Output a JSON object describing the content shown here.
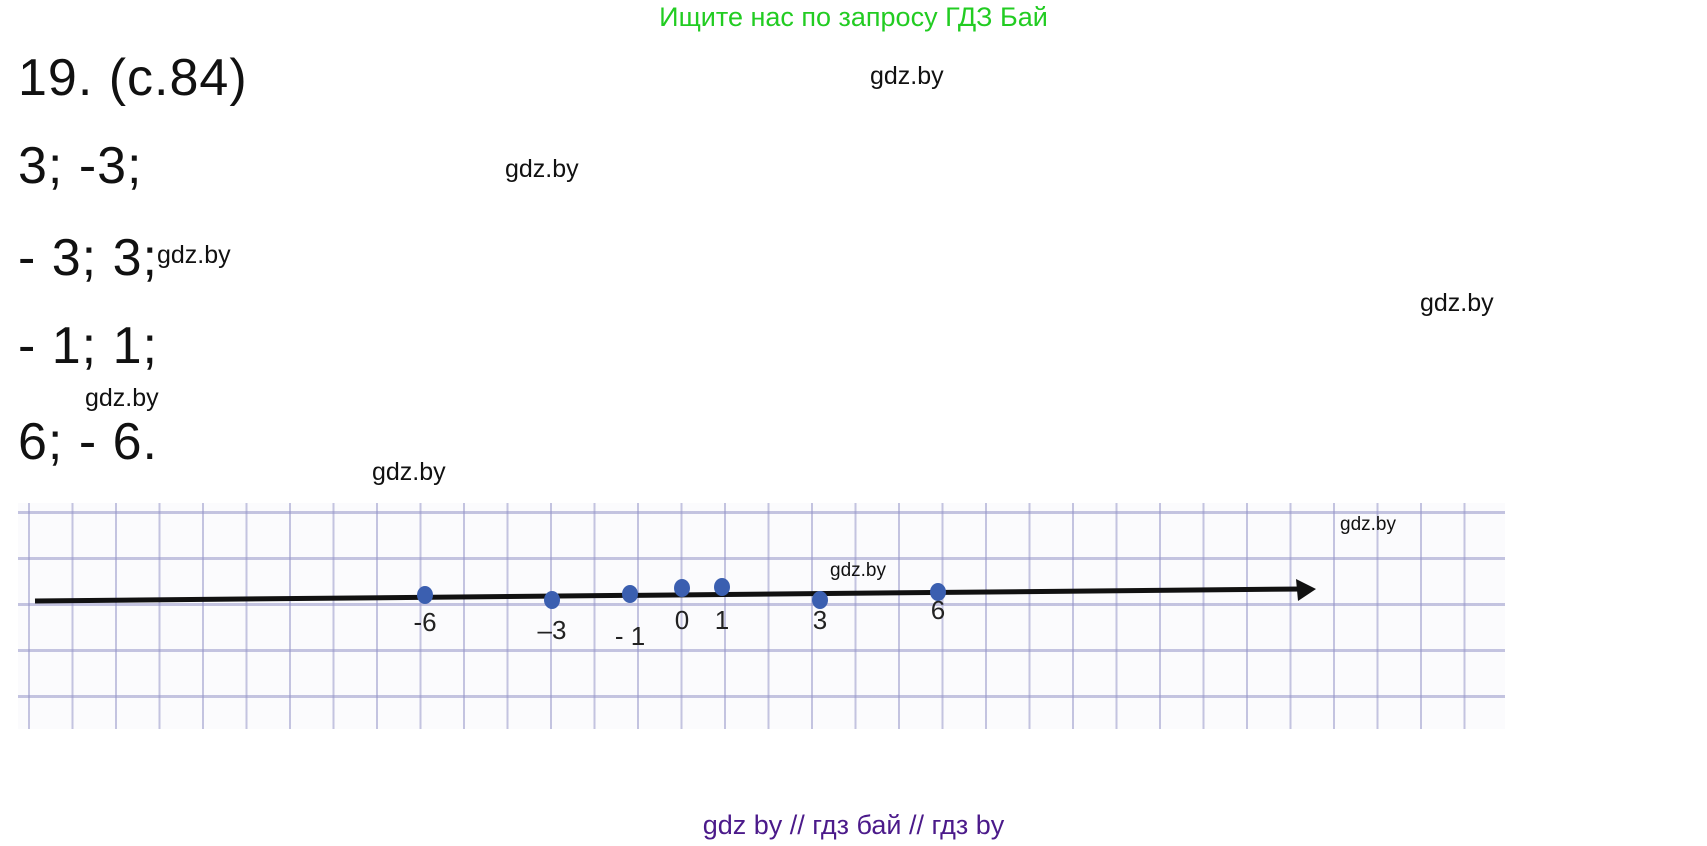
{
  "banner": "Ищите нас по запросу ГДЗ Бай",
  "title": "19. (с.84)",
  "answers": [
    "3; -3;",
    "- 3; 3;",
    "- 1; 1;",
    "6; - 6."
  ],
  "watermark": "gdz.by",
  "number_line": {
    "points": [
      {
        "value": -6,
        "label": "-6"
      },
      {
        "value": -3,
        "label": "–3"
      },
      {
        "value": -1,
        "label": "- 1"
      },
      {
        "value": 0,
        "label": "0"
      },
      {
        "value": 1,
        "label": "1"
      },
      {
        "value": 3,
        "label": "3"
      },
      {
        "value": 6,
        "label": "6"
      }
    ],
    "point_color": "#3b5fb0",
    "axis_color": "#111111"
  },
  "footer": "gdz by  //  гдз бай  //  гдз by"
}
